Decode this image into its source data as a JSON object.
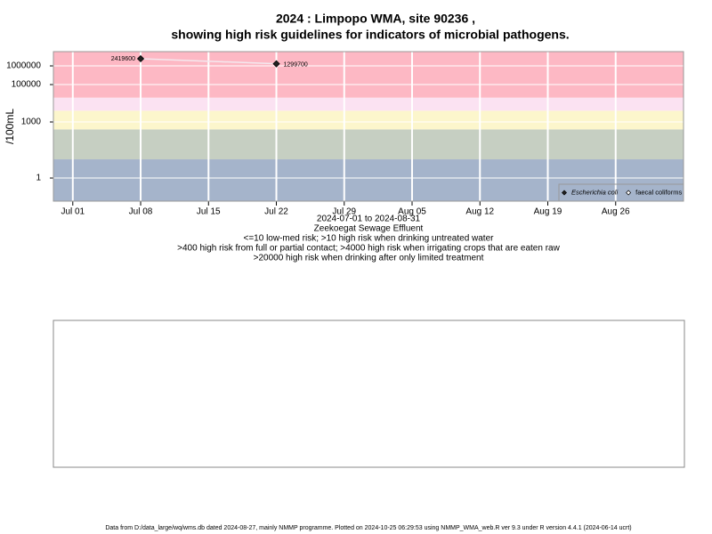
{
  "chart_data": {
    "type": "scatter",
    "title": "2024 : Limpopo WMA, site 90236 ,",
    "subtitle": "showing high risk guidelines for indicators of microbial pathogens.",
    "ylabel": "/100mL",
    "notes": [
      "2024-07-01 to 2024-08-31",
      "Zeekoegat Sewage Effluent",
      "<=10 low-med risk; >10 high risk when drinking untreated water",
      ">400 high risk from full or partial contact; >4000 high risk when irrigating crops that are eaten raw",
      ">20000 high risk when drinking after only limited treatment"
    ],
    "log_y": true,
    "grid": true,
    "legend_position": "bottom-right",
    "thresholds": [
      10,
      400,
      4000,
      20000
    ],
    "band_colors": [
      "#a5b4cb",
      "#c6cfc2",
      "#fcf6cc",
      "#fbe2f2",
      "#fdb8c4"
    ],
    "xlim": [
      "2024-06-29",
      "2024-09-02"
    ],
    "xticks": [
      {
        "value": "2024-07-01",
        "label": "Jul 01"
      },
      {
        "value": "2024-07-08",
        "label": "Jul 08"
      },
      {
        "value": "2024-07-15",
        "label": "Jul 15"
      },
      {
        "value": "2024-07-22",
        "label": "Jul 22"
      },
      {
        "value": "2024-07-29",
        "label": "Jul 29"
      },
      {
        "value": "2024-08-05",
        "label": "Aug 05"
      },
      {
        "value": "2024-08-12",
        "label": "Aug 12"
      },
      {
        "value": "2024-08-19",
        "label": "Aug 19"
      },
      {
        "value": "2024-08-26",
        "label": "Aug 26"
      }
    ],
    "ylim": [
      0.058,
      5800000
    ],
    "yticks": [
      1,
      1000,
      100000,
      1000000
    ],
    "series": [
      {
        "name": "Escherichia coli",
        "color": "#222222",
        "line_color": "#f4e8ee",
        "x": [
          "2024-07-08",
          "2024-07-22"
        ],
        "values": [
          2419600,
          1299700
        ]
      },
      {
        "name": "faecal coliforms",
        "color": "#ffffff",
        "x": [],
        "values": []
      }
    ]
  },
  "footer": "Data from D:/data_large/wq/wms.db dated 2024-08-27, mainly NMMP programme. Plotted on 2024-10-25 06:29:53 using NMMP_WMA_web.R ver 9.3 under R version 4.4.1 (2024-06-14 ucrt)"
}
